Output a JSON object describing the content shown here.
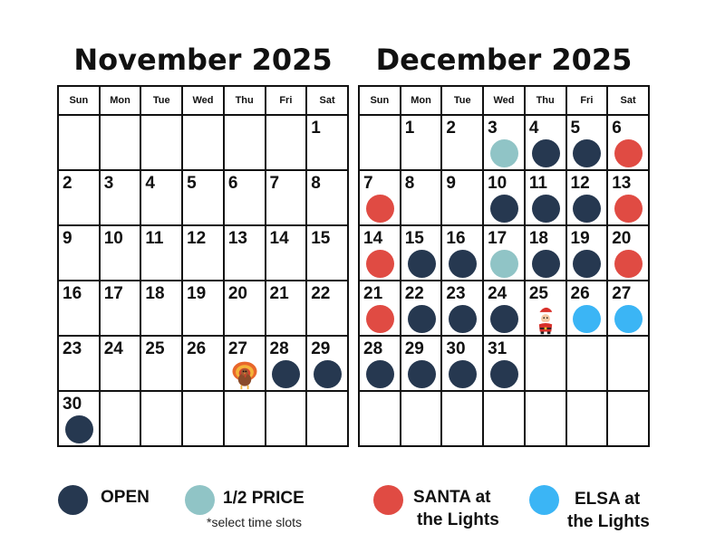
{
  "colors": {
    "open": "#263850",
    "half_price": "#90c4c6",
    "santa": "#e04b43",
    "elsa": "#3bb5f5"
  },
  "weekdays": [
    "Sun",
    "Mon",
    "Tue",
    "Wed",
    "Thu",
    "Fri",
    "Sat"
  ],
  "calendars": [
    {
      "title": "November 2025",
      "weeks": [
        [
          {
            "day": ""
          },
          {
            "day": ""
          },
          {
            "day": ""
          },
          {
            "day": ""
          },
          {
            "day": ""
          },
          {
            "day": ""
          },
          {
            "day": "1"
          }
        ],
        [
          {
            "day": "2"
          },
          {
            "day": "3"
          },
          {
            "day": "4"
          },
          {
            "day": "5"
          },
          {
            "day": "6"
          },
          {
            "day": "7"
          },
          {
            "day": "8"
          }
        ],
        [
          {
            "day": "9"
          },
          {
            "day": "10"
          },
          {
            "day": "11"
          },
          {
            "day": "12"
          },
          {
            "day": "13"
          },
          {
            "day": "14"
          },
          {
            "day": "15"
          }
        ],
        [
          {
            "day": "16"
          },
          {
            "day": "17"
          },
          {
            "day": "18"
          },
          {
            "day": "19"
          },
          {
            "day": "20"
          },
          {
            "day": "21"
          },
          {
            "day": "22"
          }
        ],
        [
          {
            "day": "23"
          },
          {
            "day": "24"
          },
          {
            "day": "25"
          },
          {
            "day": "26"
          },
          {
            "day": "27",
            "icon": "turkey-icon"
          },
          {
            "day": "28",
            "status": "open"
          },
          {
            "day": "29",
            "status": "open"
          }
        ],
        [
          {
            "day": "30",
            "status": "open"
          },
          {
            "day": ""
          },
          {
            "day": ""
          },
          {
            "day": ""
          },
          {
            "day": ""
          },
          {
            "day": ""
          },
          {
            "day": ""
          }
        ]
      ]
    },
    {
      "title": "December 2025",
      "weeks": [
        [
          {
            "day": ""
          },
          {
            "day": "1"
          },
          {
            "day": "2"
          },
          {
            "day": "3",
            "status": "half_price"
          },
          {
            "day": "4",
            "status": "open"
          },
          {
            "day": "5",
            "status": "open"
          },
          {
            "day": "6",
            "status": "santa"
          }
        ],
        [
          {
            "day": "7",
            "status": "santa"
          },
          {
            "day": "8"
          },
          {
            "day": "9"
          },
          {
            "day": "10",
            "status": "open"
          },
          {
            "day": "11",
            "status": "open"
          },
          {
            "day": "12",
            "status": "open"
          },
          {
            "day": "13",
            "status": "santa"
          }
        ],
        [
          {
            "day": "14",
            "status": "santa"
          },
          {
            "day": "15",
            "status": "open"
          },
          {
            "day": "16",
            "status": "open"
          },
          {
            "day": "17",
            "status": "half_price"
          },
          {
            "day": "18",
            "status": "open"
          },
          {
            "day": "19",
            "status": "open"
          },
          {
            "day": "20",
            "status": "santa"
          }
        ],
        [
          {
            "day": "21",
            "status": "santa"
          },
          {
            "day": "22",
            "status": "open"
          },
          {
            "day": "23",
            "status": "open"
          },
          {
            "day": "24",
            "status": "open"
          },
          {
            "day": "25",
            "icon": "santa-claus-icon"
          },
          {
            "day": "26",
            "status": "elsa"
          },
          {
            "day": "27",
            "status": "elsa"
          }
        ],
        [
          {
            "day": "28",
            "status": "open"
          },
          {
            "day": "29",
            "status": "open"
          },
          {
            "day": "30",
            "status": "open"
          },
          {
            "day": "31",
            "status": "open"
          },
          {
            "day": ""
          },
          {
            "day": ""
          },
          {
            "day": ""
          }
        ],
        [
          {
            "day": ""
          },
          {
            "day": ""
          },
          {
            "day": ""
          },
          {
            "day": ""
          },
          {
            "day": ""
          },
          {
            "day": ""
          },
          {
            "day": ""
          }
        ]
      ]
    }
  ],
  "legend": {
    "open": {
      "label": "OPEN"
    },
    "half_price": {
      "label": "1/2 PRICE",
      "note": "*select time slots"
    },
    "santa": {
      "line1": "SANTA at",
      "line2": "the Lights"
    },
    "elsa": {
      "line1": "ELSA at",
      "line2": "the Lights"
    }
  }
}
